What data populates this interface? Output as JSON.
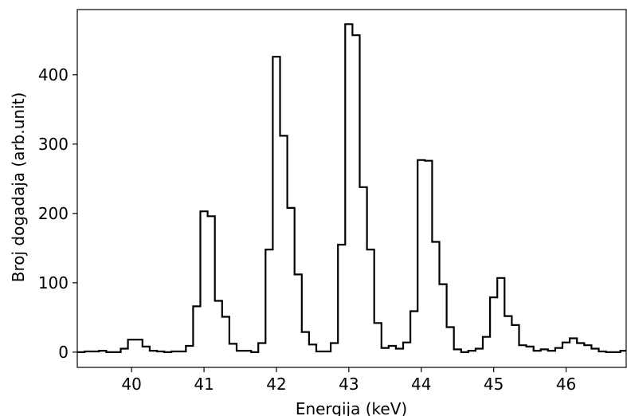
{
  "chart_data": {
    "type": "line",
    "style": "step-histogram",
    "xlabel": "Energija (keV)",
    "ylabel": "Broj dogadaja (arb.unit)",
    "xlim": [
      39.25,
      46.83
    ],
    "ylim": [
      -22,
      494
    ],
    "xticks": [
      40,
      41,
      42,
      43,
      44,
      45,
      46
    ],
    "yticks": [
      0,
      100,
      200,
      300,
      400
    ],
    "grid": false,
    "line_color": "#000000",
    "bin_width": 0.1,
    "series": [
      {
        "x": [
          39.25,
          39.35,
          39.45,
          39.55,
          39.65,
          39.75,
          39.85,
          39.95,
          40.05,
          40.15,
          40.25,
          40.35,
          40.45,
          40.55,
          40.65,
          40.75,
          40.85,
          40.95,
          41.05,
          41.15,
          41.25,
          41.35,
          41.45,
          41.55,
          41.65,
          41.75,
          41.85,
          41.95,
          42.05,
          42.15,
          42.25,
          42.35,
          42.45,
          42.55,
          42.65,
          42.75,
          42.85,
          42.95,
          43.05,
          43.15,
          43.25,
          43.35,
          43.45,
          43.55,
          43.65,
          43.75,
          43.85,
          43.95,
          44.05,
          44.15,
          44.25,
          44.35,
          44.45,
          44.55,
          44.65,
          44.75,
          44.85,
          44.95,
          45.05,
          45.15,
          45.25,
          45.35,
          45.45,
          45.55,
          45.65,
          45.75,
          45.85,
          45.95,
          46.05,
          46.15,
          46.25,
          46.35,
          46.45,
          46.55,
          46.65,
          46.75
        ],
        "values": [
          0,
          1,
          1,
          2,
          0,
          0,
          5,
          18,
          18,
          8,
          2,
          1,
          0,
          1,
          1,
          9,
          66,
          203,
          196,
          74,
          51,
          12,
          2,
          2,
          0,
          13,
          148,
          426,
          312,
          208,
          112,
          29,
          11,
          1,
          1,
          13,
          155,
          473,
          457,
          238,
          148,
          42,
          6,
          9,
          5,
          14,
          59,
          277,
          276,
          159,
          98,
          36,
          4,
          0,
          2,
          5,
          22,
          79,
          107,
          52,
          39,
          10,
          8,
          2,
          4,
          2,
          6,
          14,
          20,
          13,
          10,
          5,
          1,
          0,
          0,
          2
        ]
      }
    ]
  }
}
